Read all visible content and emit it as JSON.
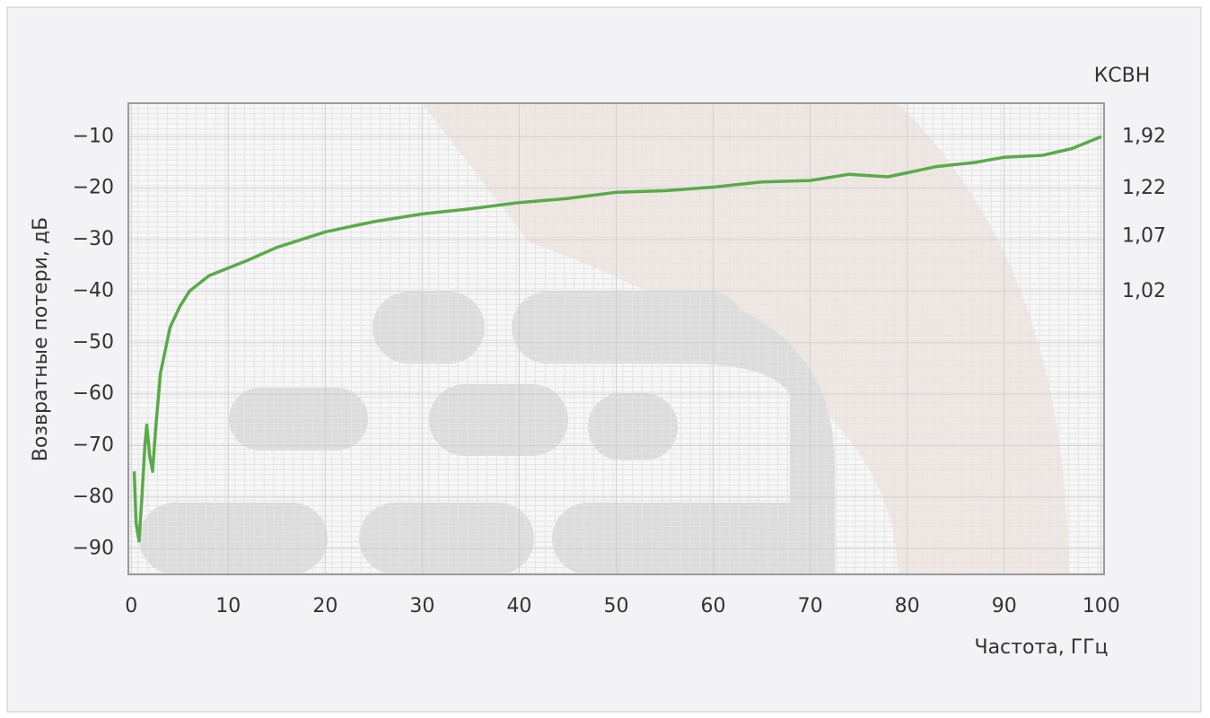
{
  "chart_data": {
    "type": "line",
    "y_axis_label": "Возвратные потери, дБ",
    "x_axis_label": "Частота, ГГц",
    "y2_axis_label": "КСВН",
    "xlim": [
      -0.3,
      100.3
    ],
    "ylim": [
      -95,
      -3.5
    ],
    "xticks": [
      0,
      10,
      20,
      30,
      40,
      50,
      60,
      70,
      80,
      90,
      100
    ],
    "yticks": [
      {
        "value": -10,
        "label": "−10"
      },
      {
        "value": -20,
        "label": "−20"
      },
      {
        "value": -30,
        "label": "−30"
      },
      {
        "value": -40,
        "label": "−40"
      },
      {
        "value": -50,
        "label": "−50"
      },
      {
        "value": -60,
        "label": "−60"
      },
      {
        "value": -70,
        "label": "−70"
      },
      {
        "value": -80,
        "label": "−80"
      },
      {
        "value": -90,
        "label": "−90"
      }
    ],
    "y2ticks": [
      {
        "value": 1.92,
        "label": "1,92"
      },
      {
        "value": 1.22,
        "label": "1,22"
      },
      {
        "value": 1.07,
        "label": "1,07"
      },
      {
        "value": 1.02,
        "label": "1,02"
      }
    ],
    "grid": true,
    "x": [
      0.3,
      0.5,
      0.8,
      1.1,
      1.4,
      1.6,
      1.9,
      2.2,
      2.5,
      3,
      4,
      5,
      6,
      8,
      10,
      12,
      15,
      20,
      25,
      30,
      35,
      40,
      45,
      50,
      55,
      60,
      65,
      70,
      74,
      78,
      80,
      83,
      87,
      90,
      94,
      97,
      100
    ],
    "series": [
      {
        "color": "#5aaa4a",
        "values": [
          -75,
          -85,
          -88.5,
          -80,
          -70,
          -66,
          -72,
          -75,
          -67,
          -56,
          -47,
          -43,
          -40,
          -37,
          -35.5,
          -34,
          -31.5,
          -28.5,
          -26.5,
          -25,
          -24,
          -22.8,
          -22,
          -20.8,
          -20.5,
          -19.8,
          -18.8,
          -18.5,
          -17.3,
          -17.8,
          -17,
          -15.8,
          -15,
          -14,
          -13.6,
          -12.3,
          -10
        ]
      }
    ]
  }
}
